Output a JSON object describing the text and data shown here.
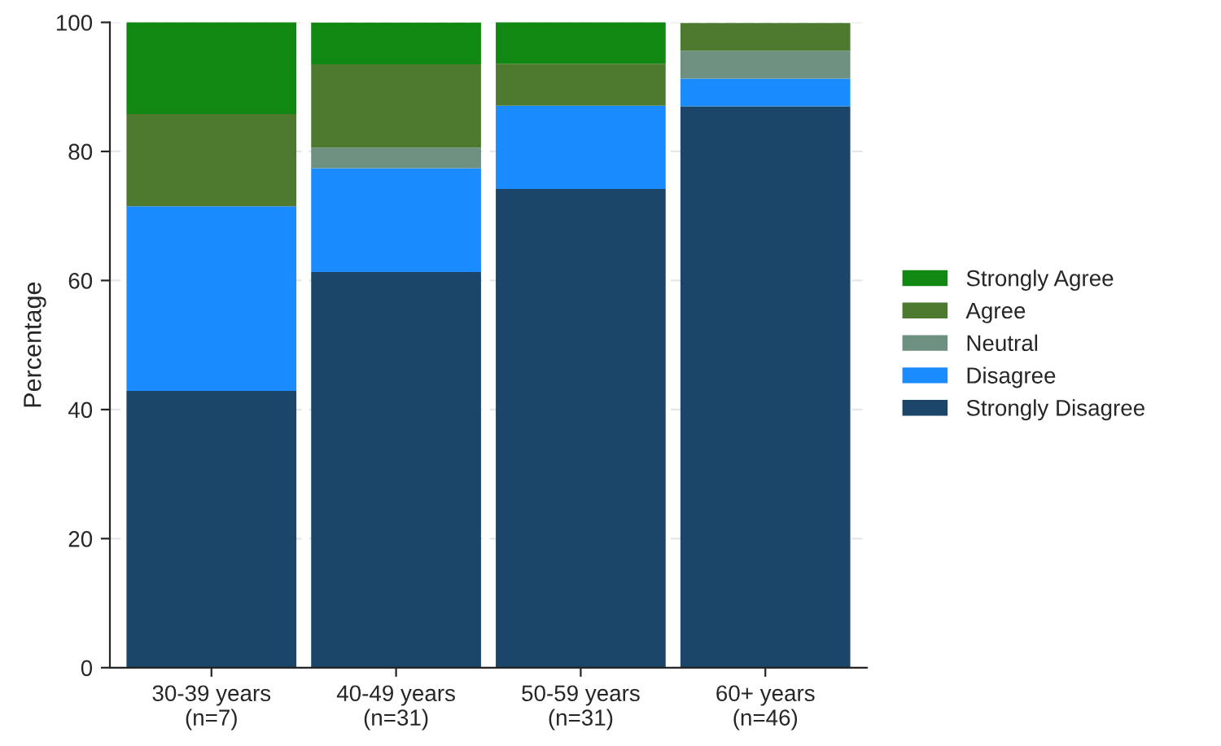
{
  "chart_data": {
    "type": "bar",
    "stacked": true,
    "ylabel": "Percentage",
    "categories": [
      "30-39 years\n(n=7)",
      "40-49 years\n(n=31)",
      "50-59 years\n(n=31)",
      "60+ years\n(n=46)"
    ],
    "series": [
      {
        "name": "Strongly Disagree",
        "color": "#1b4569",
        "values": [
          42.9,
          61.3,
          74.2,
          87.0
        ]
      },
      {
        "name": "Disagree",
        "color": "#1a8cff",
        "values": [
          28.6,
          16.1,
          12.9,
          4.3
        ]
      },
      {
        "name": "Neutral",
        "color": "#6e9080",
        "values": [
          null,
          3.2,
          null,
          4.3
        ]
      },
      {
        "name": "Agree",
        "color": "#4e7a30",
        "values": [
          14.3,
          12.9,
          6.5,
          4.3
        ]
      },
      {
        "name": "Strongly Agree",
        "color": "#118811",
        "values": [
          14.3,
          6.5,
          6.5,
          null
        ]
      }
    ],
    "ylim": [
      0,
      100
    ],
    "yticks": [
      0,
      20,
      40,
      60,
      80,
      100
    ],
    "grid": "y",
    "legend": "right"
  }
}
